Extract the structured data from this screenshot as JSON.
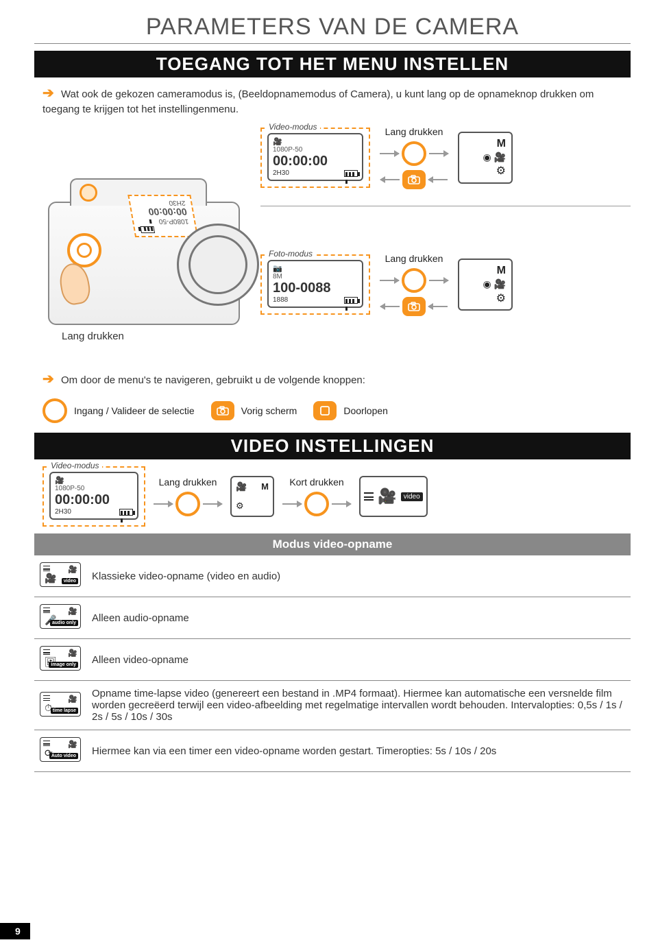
{
  "page_title": "PARAMETERS VAN DE CAMERA",
  "section_bar_1": "TOEGANG TOT HET MENU INSTELLEN",
  "intro_text": "Wat ook de gekozen cameramodus is, (Beeldopnamemodus of Camera), u kunt lang op de opnameknop drukken om toegang te krijgen tot het instellingenmenu.",
  "video_modus_label": "Video-modus",
  "foto_modus_label": "Foto-modus",
  "lang_drukken": "Lang drukken",
  "kort_drukken": "Kort drukken",
  "lcd_video": {
    "res": "1080P-50",
    "time": "00:00:00",
    "remain": "2H30"
  },
  "lcd_foto": {
    "res": "8M",
    "count": "100-0088",
    "remain": "1888"
  },
  "mode_letter": "M",
  "nav_intro": "Om door de menu's te navigeren, gebruikt u de volgende knoppen:",
  "nav": {
    "enter": "Ingang / Valideer de selectie",
    "back": "Vorig scherm",
    "cycle": "Doorlopen"
  },
  "section_bar_2": "VIDEO INSTELLINGEN",
  "video_label_small": "video",
  "table_header": "Modus video-opname",
  "modes": [
    {
      "icon_label": "video",
      "icon_glyph": "🎥",
      "desc": "Klassieke video-opname (video en audio)"
    },
    {
      "icon_label": "audio only",
      "icon_glyph": "🎤",
      "desc": "Alleen audio-opname"
    },
    {
      "icon_label": "image only",
      "icon_glyph": "🖼",
      "desc": "Alleen video-opname"
    },
    {
      "icon_label": "time lapse",
      "icon_glyph": "⏱",
      "desc": "Opname time-lapse video (genereert een bestand in .MP4 formaat). Hiermee kan automatische een versnelde film worden gecreëerd terwijl een video-afbeelding met regelmatige intervallen wordt behouden. Intervalopties: 0,5s / 1s / 2s / 5s / 10s / 30s"
    },
    {
      "icon_label": "Auto video",
      "icon_glyph": "⟳",
      "desc": "Hiermee kan via een timer een video-opname worden gestart. Timeropties: 5s / 10s / 20s"
    }
  ],
  "page_number": "9",
  "colors": {
    "accent": "#f7941e",
    "grey_bar": "#888888",
    "text": "#333333"
  }
}
